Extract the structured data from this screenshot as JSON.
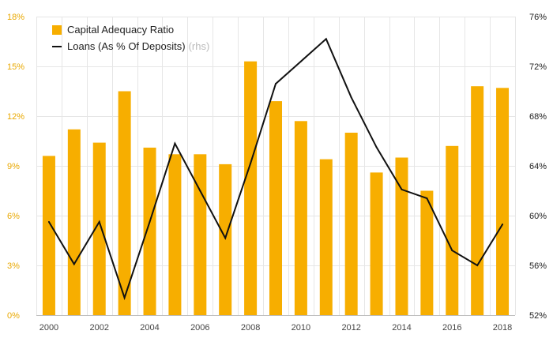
{
  "chart_data": {
    "type": "bar+line",
    "x": [
      2000,
      2001,
      2002,
      2003,
      2004,
      2005,
      2006,
      2007,
      2008,
      2009,
      2010,
      2011,
      2012,
      2013,
      2014,
      2015,
      2016,
      2017,
      2018
    ],
    "x_tick_labels": [
      "2000",
      "2002",
      "2004",
      "2006",
      "2008",
      "2010",
      "2012",
      "2014",
      "2016",
      "2018"
    ],
    "series": [
      {
        "name": "Capital Adequacy Ratio",
        "type": "bar",
        "axis": "left",
        "values": [
          9.6,
          11.2,
          10.4,
          13.5,
          10.1,
          9.7,
          9.7,
          9.1,
          15.3,
          12.9,
          11.7,
          9.4,
          11.0,
          8.6,
          9.5,
          7.5,
          10.2,
          13.8,
          13.7
        ]
      },
      {
        "name": "Loans (As % Of Deposits)",
        "type": "line",
        "axis": "right",
        "values": [
          59.5,
          56.1,
          59.5,
          53.4,
          59.5,
          65.8,
          62.0,
          58.2,
          64.2,
          70.6,
          72.4,
          74.2,
          69.5,
          65.5,
          62.1,
          61.4,
          57.2,
          56.0,
          59.3
        ]
      }
    ],
    "left_axis": {
      "min": 0,
      "max": 18,
      "ticks": [
        "0%",
        "3%",
        "6%",
        "9%",
        "12%",
        "15%",
        "18%"
      ]
    },
    "right_axis": {
      "min": 52,
      "max": 76,
      "ticks": [
        "52%",
        "56%",
        "60%",
        "64%",
        "68%",
        "72%",
        "76%"
      ]
    },
    "grid": true,
    "legend_position": "top-left"
  },
  "legend": {
    "bar_label": "Capital Adequacy Ratio",
    "line_label": "Loans (As % Of Deposits)",
    "line_note": "(rhs)"
  },
  "colors": {
    "bar": "#F7AE00",
    "line": "#111111",
    "left_axis_text": "#E9A800",
    "right_axis_text": "#222222",
    "x_axis_text": "#444444",
    "grid": "#e6e6e6",
    "background": "#ffffff"
  }
}
